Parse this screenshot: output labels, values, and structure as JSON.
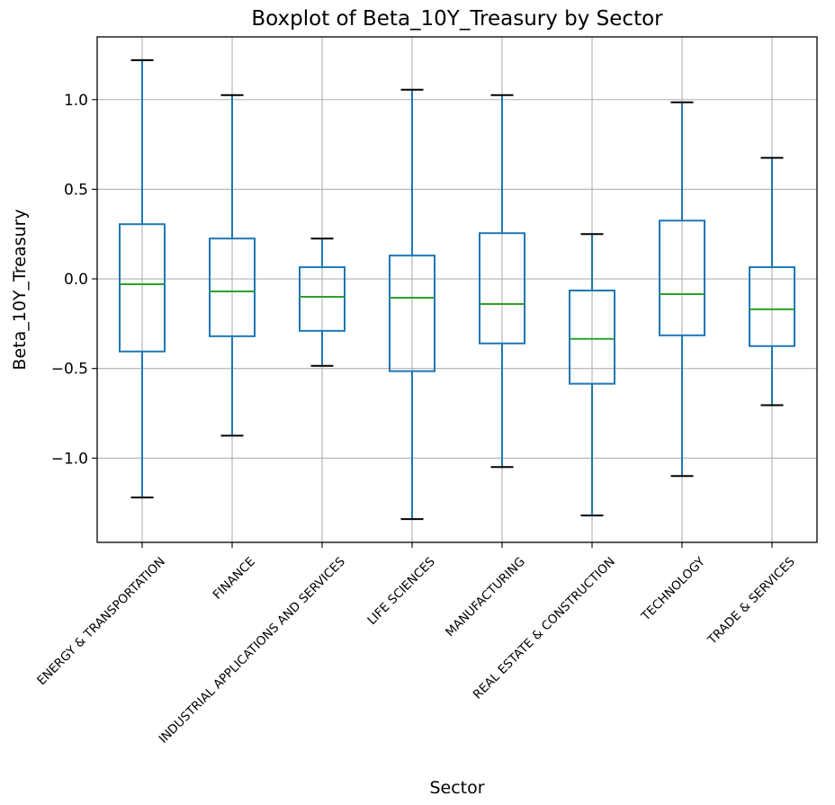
{
  "chart_data": {
    "type": "boxplot",
    "title": "Boxplot of Beta_10Y_Treasury by Sector",
    "xlabel": "Sector",
    "ylabel": "Beta_10Y_Treasury",
    "ylim": [
      -1.47,
      1.35
    ],
    "yticks": [
      -1.0,
      -0.5,
      0.0,
      0.5,
      1.0
    ],
    "ytick_labels": [
      "−1.0",
      "−0.5",
      "0.0",
      "0.5",
      "1.0"
    ],
    "grid": true,
    "colors": {
      "box": "#1f77b4",
      "median": "#2ca02c",
      "cap": "#000000",
      "grid": "#b0b0b0"
    },
    "categories": [
      "ENERGY & TRANSPORTATION",
      "FINANCE",
      "INDUSTRIAL APPLICATIONS AND SERVICES",
      "LIFE SCIENCES",
      "MANUFACTURING",
      "REAL ESTATE & CONSTRUCTION",
      "TECHNOLOGY",
      "TRADE & SERVICES"
    ],
    "boxes": [
      {
        "whisker_low": -1.22,
        "q1": -0.405,
        "median": -0.03,
        "q3": 0.305,
        "whisker_high": 1.22
      },
      {
        "whisker_low": -0.875,
        "q1": -0.32,
        "median": -0.07,
        "q3": 0.225,
        "whisker_high": 1.025
      },
      {
        "whisker_low": -0.485,
        "q1": -0.29,
        "median": -0.1,
        "q3": 0.065,
        "whisker_high": 0.225
      },
      {
        "whisker_low": -1.34,
        "q1": -0.515,
        "median": -0.105,
        "q3": 0.13,
        "whisker_high": 1.055
      },
      {
        "whisker_low": -1.05,
        "q1": -0.36,
        "median": -0.14,
        "q3": 0.255,
        "whisker_high": 1.025
      },
      {
        "whisker_low": -1.32,
        "q1": -0.585,
        "median": -0.335,
        "q3": -0.065,
        "whisker_high": 0.25
      },
      {
        "whisker_low": -1.1,
        "q1": -0.315,
        "median": -0.085,
        "q3": 0.325,
        "whisker_high": 0.985
      },
      {
        "whisker_low": -0.705,
        "q1": -0.375,
        "median": -0.17,
        "q3": 0.065,
        "whisker_high": 0.675
      }
    ]
  }
}
